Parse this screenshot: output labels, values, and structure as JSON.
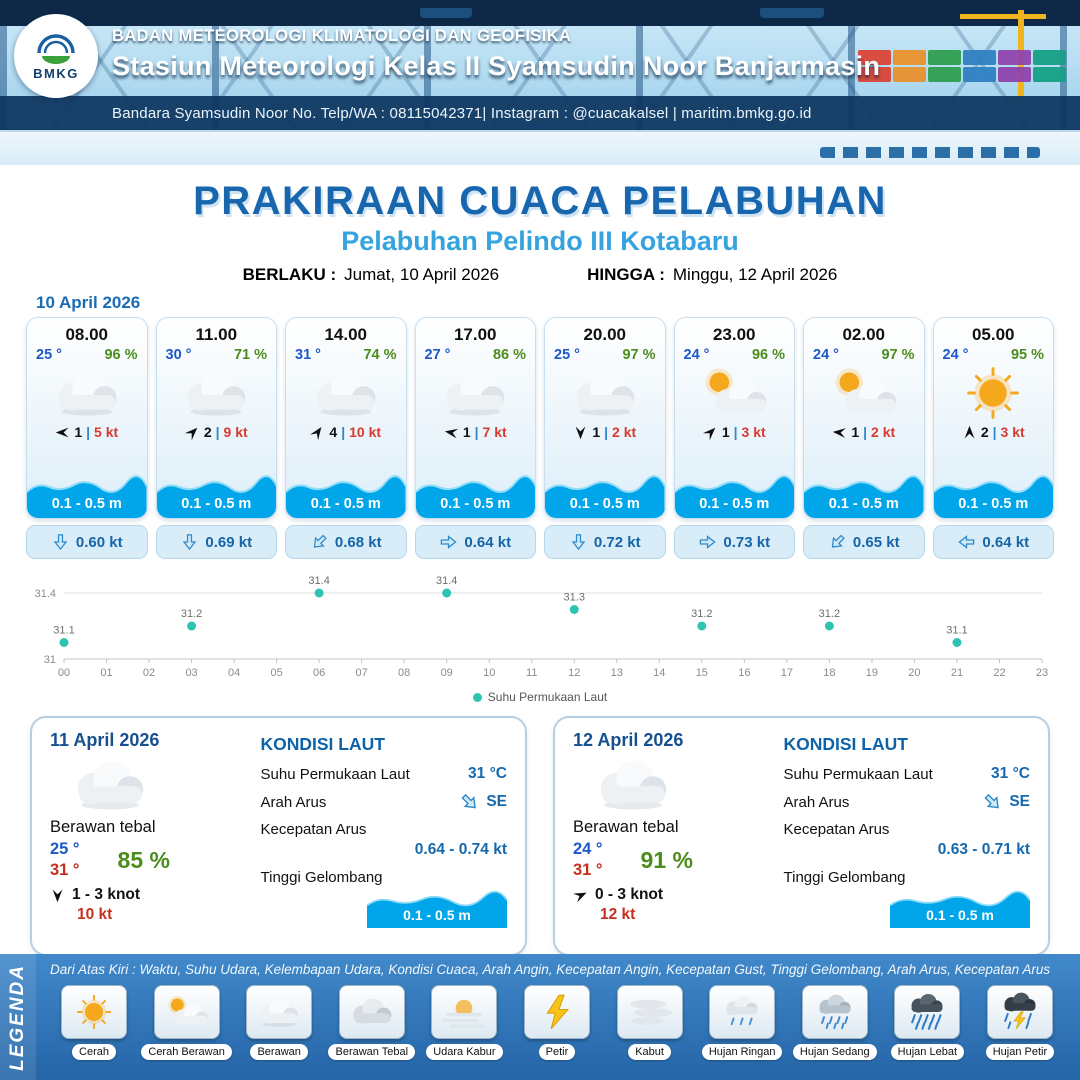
{
  "header": {
    "logo_text": "BMKG",
    "org": "BADAN METEOROLOGI KLIMATOLOGI DAN GEOFISIKA",
    "station": "Stasiun Meteorologi Kelas II Syamsudin Noor Banjarmasin",
    "contact": "Bandara Syamsudin Noor No. Telp/WA : 08115042371| Instagram : @cuacakalsel | maritim.bmkg.go.id"
  },
  "title": {
    "main": "PRAKIRAAN CUACA PELABUHAN",
    "sub": "Pelabuhan Pelindo III Kotabaru",
    "valid_from_label": "BERLAKU :",
    "valid_from": "Jumat, 10 April 2026",
    "valid_to_label": "HINGGA :",
    "valid_to": "Minggu, 12 April 2026"
  },
  "forecast_date": "10 April 2026",
  "hourly": [
    {
      "time": "08.00",
      "temp": "25 °",
      "rh": "96 %",
      "icon": "cloud",
      "wind_dir_deg": 180,
      "wind_speed": "1",
      "gust": "5 kt",
      "wave": "0.1 - 0.5 m",
      "current_dir_deg": 90,
      "current_speed": "0.60 kt"
    },
    {
      "time": "11.00",
      "temp": "30 °",
      "rh": "71 %",
      "icon": "cloud",
      "wind_dir_deg": -45,
      "wind_speed": "2",
      "gust": "9 kt",
      "wave": "0.1 - 0.5 m",
      "current_dir_deg": 90,
      "current_speed": "0.69 kt"
    },
    {
      "time": "14.00",
      "temp": "31 °",
      "rh": "74 %",
      "icon": "cloud",
      "wind_dir_deg": -55,
      "wind_speed": "4",
      "gust": "10 kt",
      "wave": "0.1 - 0.5 m",
      "current_dir_deg": 135,
      "current_speed": "0.68 kt"
    },
    {
      "time": "17.00",
      "temp": "27 °",
      "rh": "86 %",
      "icon": "cloud",
      "wind_dir_deg": 190,
      "wind_speed": "1",
      "gust": "7 kt",
      "wave": "0.1 - 0.5 m",
      "current_dir_deg": 0,
      "current_speed": "0.64 kt"
    },
    {
      "time": "20.00",
      "temp": "25 °",
      "rh": "97 %",
      "icon": "cloud",
      "wind_dir_deg": 90,
      "wind_speed": "1",
      "gust": "2 kt",
      "wave": "0.1 - 0.5 m",
      "current_dir_deg": 90,
      "current_speed": "0.72 kt"
    },
    {
      "time": "23.00",
      "temp": "24 °",
      "rh": "96 %",
      "icon": "sun-cloud",
      "wind_dir_deg": -45,
      "wind_speed": "1",
      "gust": "3 kt",
      "wave": "0.1 - 0.5 m",
      "current_dir_deg": 0,
      "current_speed": "0.73 kt"
    },
    {
      "time": "02.00",
      "temp": "24 °",
      "rh": "97 %",
      "icon": "sun-cloud",
      "wind_dir_deg": 185,
      "wind_speed": "1",
      "gust": "2 kt",
      "wave": "0.1 - 0.5 m",
      "current_dir_deg": 135,
      "current_speed": "0.65 kt"
    },
    {
      "time": "05.00",
      "temp": "24 °",
      "rh": "95 %",
      "icon": "sun",
      "wind_dir_deg": -90,
      "wind_speed": "2",
      "gust": "3 kt",
      "wave": "0.1 - 0.5 m",
      "current_dir_deg": 180,
      "current_speed": "0.64 kt"
    }
  ],
  "chart_data": {
    "type": "scatter",
    "series_name": "Suhu Permukaan Laut",
    "x": [
      0,
      3,
      6,
      9,
      12,
      15,
      18,
      21
    ],
    "values": [
      31.1,
      31.2,
      31.4,
      31.4,
      31.3,
      31.2,
      31.2,
      31.1
    ],
    "x_ticks": [
      "00",
      "01",
      "02",
      "03",
      "04",
      "05",
      "06",
      "07",
      "08",
      "09",
      "10",
      "11",
      "12",
      "13",
      "14",
      "15",
      "16",
      "17",
      "18",
      "19",
      "20",
      "21",
      "22",
      "23"
    ],
    "ylim": [
      31,
      31.4
    ],
    "y_ticks": [
      "31",
      "31.4"
    ],
    "point_color": "#2fc4b2",
    "grid": true,
    "legend_position": "bottom"
  },
  "daily": [
    {
      "date": "11 April 2026",
      "icon": "cloud",
      "condition": "Berawan tebal",
      "temp_min": "25 °",
      "temp_max": "31 °",
      "rh": "85 %",
      "wind_dir_deg": 90,
      "wind_range": "1 - 3 knot",
      "gust": "10 kt",
      "sea": {
        "title": "KONDISI LAUT",
        "sst_label": "Suhu Permukaan Laut",
        "sst": "31 °C",
        "current_dir_label": "Arah Arus",
        "current_dir": "SE",
        "current_dir_deg": 45,
        "current_speed_label": "Kecepatan Arus",
        "current_speed": "0.64 - 0.74 kt",
        "wave_label": "Tinggi Gelombang",
        "wave": "0.1 - 0.5 m"
      }
    },
    {
      "date": "12 April 2026",
      "icon": "cloud",
      "condition": "Berawan tebal",
      "temp_min": "24 °",
      "temp_max": "31 °",
      "rh": "91 %",
      "wind_dir_deg": -25,
      "wind_range": "0  - 3 knot",
      "gust": "12 kt",
      "sea": {
        "title": "KONDISI LAUT",
        "sst_label": "Suhu Permukaan Laut",
        "sst": "31 °C",
        "current_dir_label": "Arah Arus",
        "current_dir": "SE",
        "current_dir_deg": 45,
        "current_speed_label": "Kecepatan Arus",
        "current_speed": "0.63 - 0.71 kt",
        "wave_label": "Tinggi Gelombang",
        "wave": "0.1 - 0.5 m"
      }
    }
  ],
  "legend": {
    "title": "LEGENDA",
    "description": "Dari Atas Kiri : Waktu, Suhu Udara, Kelembapan Udara, Kondisi Cuaca, Arah Angin, Kecepatan Angin, Kecepatan Gust, Tinggi Gelombang, Arah Arus, Kecepatan Arus",
    "items": [
      {
        "label": "Cerah",
        "icon": "sun"
      },
      {
        "label": "Cerah Berawan",
        "icon": "sun-cloud"
      },
      {
        "label": "Berawan",
        "icon": "cloud"
      },
      {
        "label": "Berawan Tebal",
        "icon": "cloud-dark"
      },
      {
        "label": "Udara Kabur",
        "icon": "haze"
      },
      {
        "label": "Petir",
        "icon": "lightning"
      },
      {
        "label": "Kabut",
        "icon": "fog"
      },
      {
        "label": "Hujan Ringan",
        "icon": "rain-light"
      },
      {
        "label": "Hujan Sedang",
        "icon": "rain-medium"
      },
      {
        "label": "Hujan Lebat",
        "icon": "rain-heavy"
      },
      {
        "label": "Hujan Petir",
        "icon": "rain-lightning"
      }
    ]
  }
}
